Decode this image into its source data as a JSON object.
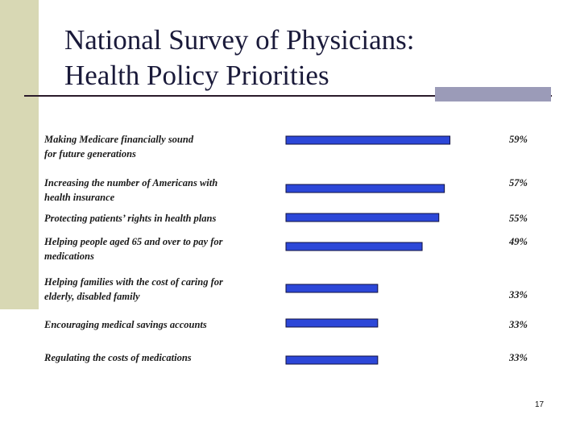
{
  "slide": {
    "title_line1": "National Survey of Physicians:",
    "title_line2": "Health Policy Priorities",
    "page_number": "17",
    "accent_color": "#2c47d8"
  },
  "chart_data": {
    "type": "bar",
    "orientation": "horizontal",
    "title": "National Survey of Physicians: Health Policy Priorities",
    "xlabel": "",
    "ylabel": "",
    "grid": false,
    "legend": "none",
    "xlim": [
      0,
      100
    ],
    "categories": [
      [
        "Making Medicare financially sound",
        "for future generations"
      ],
      [
        "Increasing the number of Americans with",
        "health insurance"
      ],
      [
        "Protecting patients’ rights in health plans"
      ],
      [
        "Helping people aged 65 and over to pay for",
        "medications"
      ],
      [
        "Helping families with the cost of caring for",
        "elderly, disabled family"
      ],
      [
        "Encouraging medical savings accounts"
      ],
      [
        "Regulating the costs of medications"
      ]
    ],
    "values": [
      59,
      57,
      55,
      49,
      33,
      33,
      33
    ],
    "value_labels": [
      "59%",
      "57%",
      "55%",
      "49%",
      "33%",
      "33%",
      "33%"
    ]
  }
}
